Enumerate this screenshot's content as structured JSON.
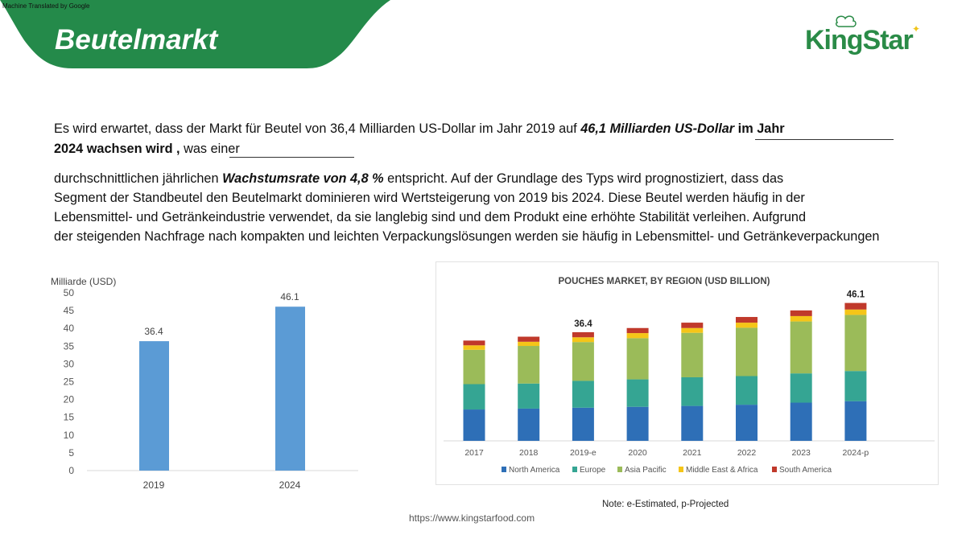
{
  "header": {
    "machine_translated": "Machine Translated by Google",
    "title": "Beutelmarkt",
    "logo_text": "KingStar",
    "brand_color": "#248a4a"
  },
  "body": {
    "line1_a": "Es wird erwartet, dass der Markt für Beutel von 36,4 Milliarden US-Dollar im Jahr 2019 auf ",
    "line1_b": "46,1 Milliarden US-Dollar",
    "line1_c": " im Jahr",
    "line2_a": "2024 wachsen wird ,",
    "line2_b": " was einer",
    "para1_a": "durchschnittlichen jährlichen ",
    "para1_b": "Wachstumsrate von 4,8 %",
    "para1_c": " entspricht. Auf der Grundlage des Typs wird prognostiziert, dass das",
    "para2": "Segment der Standbeutel den Beutelmarkt dominieren wird Wertsteigerung von 2019 bis 2024. Diese Beutel werden häufig in der",
    "para3": "Lebensmittel- und Getränkeindustrie verwendet, da sie langlebig sind und dem Produkt eine erhöhte Stabilität verleihen. Aufgrund",
    "para4": "der steigenden Nachfrage nach kompakten und leichten Verpackungslösungen werden sie häufig in Lebensmittel- und Getränkeverpackungen"
  },
  "footer": {
    "url": "https://www.kingstarfood.com",
    "note": "Note: e-Estimated, p-Projected"
  },
  "chart_data": [
    {
      "type": "bar",
      "ylabel": "Milliarde (USD)",
      "categories": [
        "2019",
        "2024"
      ],
      "values": [
        36.4,
        46.1
      ],
      "data_labels": [
        "36.4",
        "46.1"
      ],
      "ylim": [
        0,
        50
      ],
      "yticks": [
        0,
        5,
        10,
        15,
        20,
        25,
        30,
        35,
        40,
        45,
        50
      ],
      "grid": false,
      "color": "#5b9bd5"
    },
    {
      "type": "bar",
      "stacked": true,
      "title": "POUCHES MARKET, BY REGION (USD BILLION)",
      "categories": [
        "2017",
        "2018",
        "2019-e",
        "2020",
        "2021",
        "2022",
        "2023",
        "2024-p"
      ],
      "series": [
        {
          "name": "North America",
          "color": "#2e6fb7",
          "values": [
            10.5,
            10.8,
            11.1,
            11.4,
            11.7,
            12.1,
            12.8,
            13.3
          ]
        },
        {
          "name": "Europe",
          "color": "#35a593",
          "values": [
            8.5,
            8.4,
            9.0,
            9.2,
            9.6,
            9.6,
            9.8,
            10.1
          ]
        },
        {
          "name": "Asia Pacific",
          "color": "#9bbb59",
          "values": [
            11.5,
            12.6,
            13.0,
            13.8,
            14.9,
            16.2,
            17.4,
            18.8
          ]
        },
        {
          "name": "Middle East & Africa",
          "color": "#f5c518",
          "values": [
            1.5,
            1.4,
            1.6,
            1.7,
            1.6,
            1.7,
            1.8,
            1.8
          ]
        },
        {
          "name": "South America",
          "color": "#c0392b",
          "values": [
            1.6,
            1.7,
            1.7,
            1.7,
            1.8,
            1.9,
            1.9,
            2.2
          ]
        }
      ],
      "annotations": [
        {
          "category": "2019-e",
          "text": "36.4"
        },
        {
          "category": "2024-p",
          "text": "46.1"
        }
      ],
      "legend": "bottom",
      "grid": false
    }
  ]
}
